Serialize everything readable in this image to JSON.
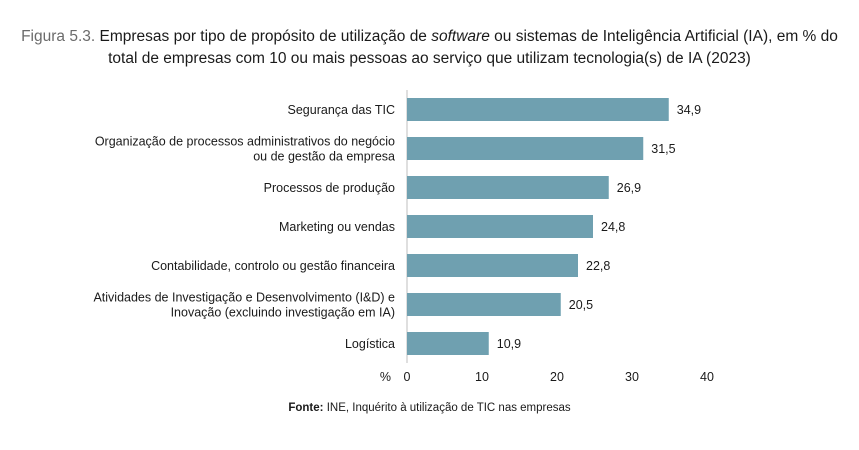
{
  "title": {
    "figure_label": "Figura 5.3.",
    "line1_before_italic": "Empresas por tipo de propósito de utilização de",
    "line1_italic": "software",
    "line1_after_italic": "ou sistemas de Inteligência Artificial (IA), em % do",
    "line2": "total de empresas com 10 ou mais pessoas ao serviço que utilizam tecnologia(s) de IA (2023)"
  },
  "source": {
    "label": "Fonte:",
    "text": "INE, Inquérito à utilização de TIC nas empresas"
  },
  "chart_data": {
    "type": "bar",
    "orientation": "horizontal",
    "categories": [
      [
        "Segurança das TIC"
      ],
      [
        "Organização de processos administrativos do negócio",
        "ou de gestão da empresa"
      ],
      [
        "Processos de produção"
      ],
      [
        "Marketing ou vendas"
      ],
      [
        "Contabilidade, controlo ou gestão financeira"
      ],
      [
        "Atividades de Investigação e Desenvolvimento (I&D) e",
        "Inovação (excluindo investigação em IA)"
      ],
      [
        "Logística"
      ]
    ],
    "values": [
      34.9,
      31.5,
      26.9,
      24.8,
      22.8,
      20.5,
      10.9
    ],
    "value_labels": [
      "34,9",
      "31,5",
      "26,9",
      "24,8",
      "22,8",
      "20,5",
      "10,9"
    ],
    "xlim": [
      0,
      40
    ],
    "xticks": [
      0,
      10,
      20,
      30,
      40
    ],
    "xunit_label": "%",
    "bar_color": "#6fa0b0",
    "grid": false
  }
}
